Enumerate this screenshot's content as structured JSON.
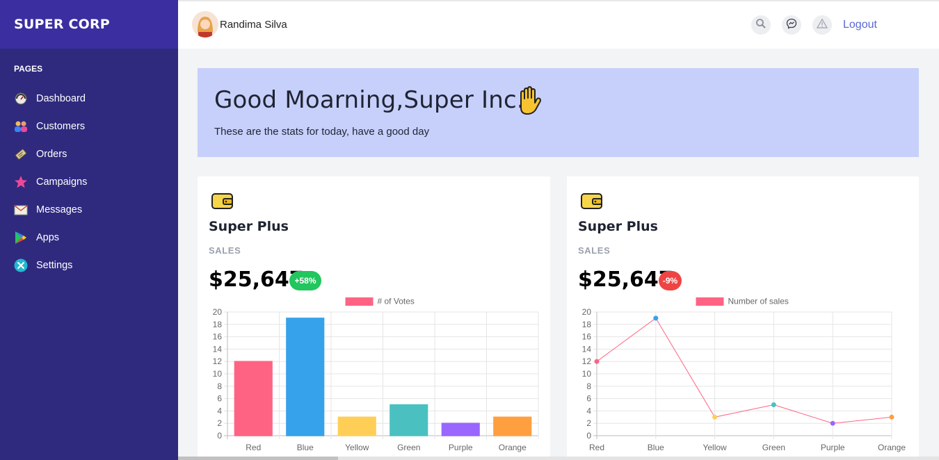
{
  "brand": "SUPER CORP",
  "sidebar": {
    "section_title": "PAGES",
    "items": [
      {
        "label": "Dashboard",
        "icon": "dashboard-icon"
      },
      {
        "label": "Customers",
        "icon": "customers-icon"
      },
      {
        "label": "Orders",
        "icon": "orders-icon"
      },
      {
        "label": "Campaigns",
        "icon": "campaigns-icon"
      },
      {
        "label": "Messages",
        "icon": "messages-icon"
      },
      {
        "label": "Apps",
        "icon": "apps-icon"
      },
      {
        "label": "Settings",
        "icon": "settings-icon"
      }
    ]
  },
  "topbar": {
    "user_name": "Randima Silva",
    "logout_label": "Logout"
  },
  "hero": {
    "greeting": "Good Moarning,Super Inc.",
    "subtitle": "These are the stats for today, have a good day"
  },
  "cards": [
    {
      "title": "Super Plus",
      "label": "SALES",
      "amount": "$25,647",
      "badge": "+58%",
      "badge_color": "#22c55e"
    },
    {
      "title": "Super Plus",
      "label": "SALES",
      "amount": "$25,647",
      "badge": "-9%",
      "badge_color": "#ef4444"
    }
  ],
  "chart_data": [
    {
      "type": "bar",
      "categories": [
        "Red",
        "Blue",
        "Yellow",
        "Green",
        "Purple",
        "Orange"
      ],
      "series": [
        {
          "name": "# of Votes",
          "values": [
            12,
            19,
            3,
            5,
            2,
            3
          ]
        }
      ],
      "colors": [
        "#ff6384",
        "#36a2eb",
        "#ffce56",
        "#4bc0c0",
        "#9966ff",
        "#ff9f40"
      ],
      "ylim": [
        0,
        20
      ],
      "yticks": [
        "0",
        "2",
        "4",
        "6",
        "8",
        "10",
        "12",
        "14",
        "16",
        "18",
        "20"
      ],
      "legend_color": "#ff6384",
      "grid": true,
      "legend": "top"
    },
    {
      "type": "line",
      "categories": [
        "Red",
        "Blue",
        "Yellow",
        "Green",
        "Purple",
        "Orange"
      ],
      "series": [
        {
          "name": "Number of sales",
          "values": [
            12,
            19,
            3,
            5,
            2,
            3
          ]
        }
      ],
      "colors": [
        "#ff6384",
        "#36a2eb",
        "#ffce56",
        "#4bc0c0",
        "#9966ff",
        "#ff9f40"
      ],
      "ylim": [
        0,
        20
      ],
      "yticks": [
        "0",
        "2",
        "4",
        "6",
        "8",
        "10",
        "12",
        "14",
        "16",
        "18",
        "20"
      ],
      "line_color": "#ff6384",
      "legend_color": "#ff6384",
      "grid": true,
      "legend": "top"
    }
  ]
}
